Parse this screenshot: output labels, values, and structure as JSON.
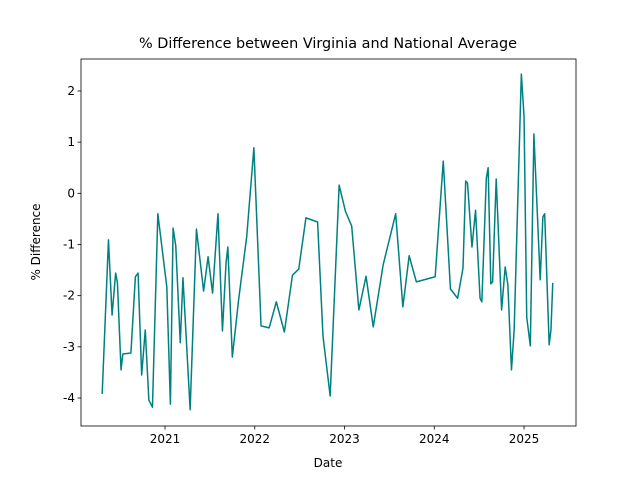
{
  "chart_data": {
    "type": "line",
    "title": "% Difference between Virginia and National Average",
    "x_label": "Date",
    "y_label": "% Difference",
    "x": [
      2020.3,
      2020.37,
      2020.41,
      2020.45,
      2020.47,
      2020.51,
      2020.53,
      2020.62,
      2020.67,
      2020.7,
      2020.74,
      2020.78,
      2020.82,
      2020.86,
      2020.92,
      2021.02,
      2021.06,
      2021.09,
      2021.12,
      2021.17,
      2021.2,
      2021.28,
      2021.35,
      2021.43,
      2021.48,
      2021.53,
      2021.59,
      2021.64,
      2021.68,
      2021.7,
      2021.75,
      2021.82,
      2021.91,
      2021.99,
      2022.07,
      2022.16,
      2022.24,
      2022.33,
      2022.42,
      2022.49,
      2022.57,
      2022.7,
      2022.76,
      2022.84,
      2022.94,
      2023.01,
      2023.08,
      2023.16,
      2023.24,
      2023.32,
      2023.43,
      2023.57,
      2023.65,
      2023.72,
      2023.8,
      2024.01,
      2024.1,
      2024.18,
      2024.26,
      2024.32,
      2024.35,
      2024.37,
      2024.42,
      2024.46,
      2024.51,
      2024.53,
      2024.58,
      2024.6,
      2024.63,
      2024.65,
      2024.69,
      2024.75,
      2024.79,
      2024.82,
      2024.86,
      2024.89,
      2024.97,
      2025.0,
      2025.03,
      2025.07,
      2025.11,
      2025.18,
      2025.21,
      2025.23,
      2025.28,
      2025.3,
      2025.32
    ],
    "values": [
      -3.92,
      -0.91,
      -2.38,
      -1.56,
      -1.75,
      -3.45,
      -3.14,
      -3.12,
      -1.63,
      -1.56,
      -3.55,
      -2.67,
      -4.04,
      -4.18,
      -0.4,
      -1.83,
      -4.12,
      -0.68,
      -1.03,
      -2.92,
      -1.65,
      -4.23,
      -0.7,
      -1.91,
      -1.24,
      -1.95,
      -0.4,
      -2.69,
      -1.36,
      -1.05,
      -3.2,
      -2.08,
      -0.85,
      0.89,
      -2.59,
      -2.63,
      -2.12,
      -2.71,
      -1.6,
      -1.48,
      -0.48,
      -0.56,
      -2.79,
      -3.96,
      0.16,
      -0.35,
      -0.64,
      -2.28,
      -1.62,
      -2.61,
      -1.4,
      -0.4,
      -2.22,
      -1.22,
      -1.73,
      -1.63,
      0.63,
      -1.87,
      -2.05,
      -1.46,
      0.24,
      0.2,
      -1.05,
      -0.33,
      -2.05,
      -2.12,
      0.3,
      0.5,
      -1.77,
      -1.73,
      0.28,
      -2.28,
      -1.44,
      -1.79,
      -3.45,
      -2.67,
      2.33,
      1.51,
      -2.42,
      -2.98,
      1.16,
      -1.69,
      -0.46,
      -0.4,
      -2.96,
      -2.67,
      -1.75
    ],
    "color": "#008080",
    "xlim": [
      2020.064,
      2025.579
    ],
    "xticks": [
      2021,
      2022,
      2023,
      2024,
      2025
    ],
    "ylim": [
      -4.547,
      2.625
    ],
    "yticks": [
      -4,
      -3,
      -2,
      -1,
      0,
      1,
      2
    ]
  }
}
